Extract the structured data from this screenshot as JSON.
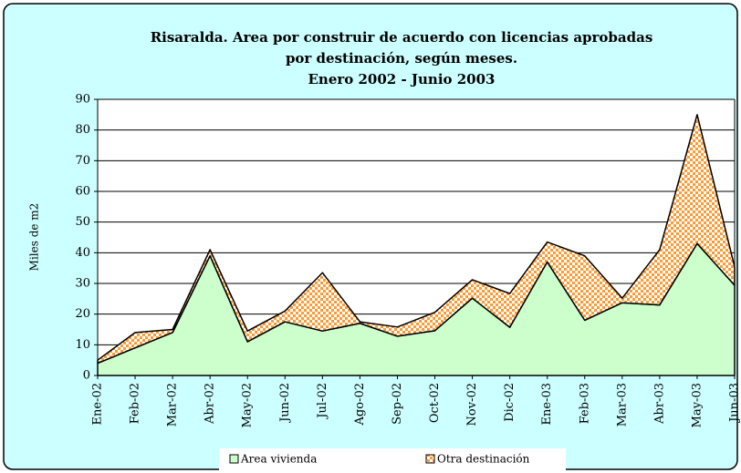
{
  "chart_data": {
    "type": "stacked-area",
    "title": [
      "Risaralda. Area por construir de acuerdo con licencias aprobadas",
      "por destinación, según meses.",
      "Enero 2002 - Junio 2003"
    ],
    "y_label": "Miles de m2",
    "categories": [
      "Ene-02",
      "Feb-02",
      "Mar-02",
      "Abr-02",
      "May-02",
      "Jun-02",
      "Jul-02",
      "Ago-02",
      "Sep-02",
      "Oct-02",
      "Nov-02",
      "Dic-02",
      "Ene-03",
      "Feb-03",
      "Mar-03",
      "Abr-03",
      "May-03",
      "Jun-03"
    ],
    "series": [
      {
        "name": "Area vivienda",
        "color": "#ccffcc",
        "values": [
          4,
          9,
          14,
          39,
          11,
          17.5,
          14.5,
          17,
          12.8,
          14.6,
          25.2,
          15.7,
          37,
          18,
          23.7,
          23,
          43,
          29.4
        ]
      },
      {
        "name": "Otra destinación",
        "color": "#ff9933",
        "values": [
          1,
          5,
          1,
          2,
          3.5,
          3.5,
          19,
          0.5,
          3,
          6,
          6,
          11,
          6.5,
          21,
          1.5,
          18,
          42,
          6
        ]
      }
    ],
    "ylim": [
      0,
      90
    ],
    "yticks": [
      0,
      10,
      20,
      30,
      40,
      50,
      60,
      70,
      80,
      90
    ],
    "grid": true,
    "legend": "bottom"
  }
}
